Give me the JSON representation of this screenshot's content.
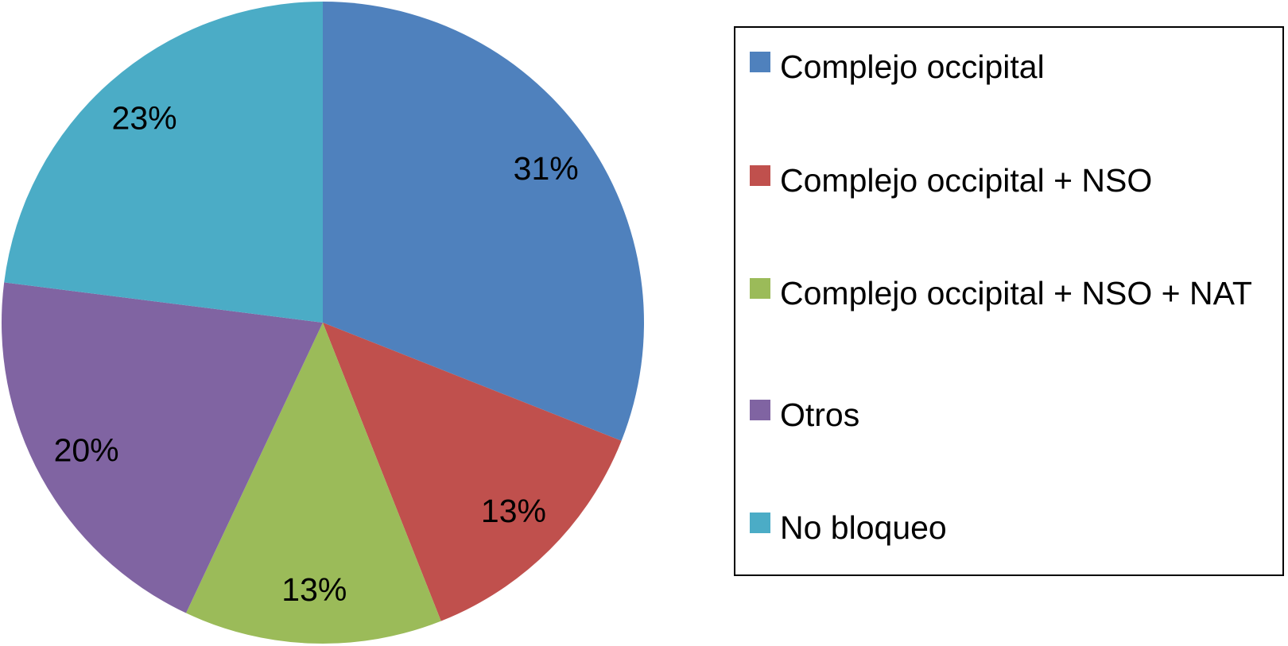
{
  "chart_data": {
    "type": "pie",
    "categories": [
      "Complejo occipital",
      "Complejo occipital + NSO",
      "Complejo occipital + NSO + NAT",
      "Otros",
      "No bloqueo"
    ],
    "values": [
      31,
      13,
      13,
      20,
      23
    ],
    "value_labels": [
      "31%",
      "13%",
      "13%",
      "20%",
      "23%"
    ],
    "colors": [
      "#4f81bd",
      "#c0504d",
      "#9bbb59",
      "#8064a2",
      "#4bacc6"
    ],
    "legend": "right"
  }
}
